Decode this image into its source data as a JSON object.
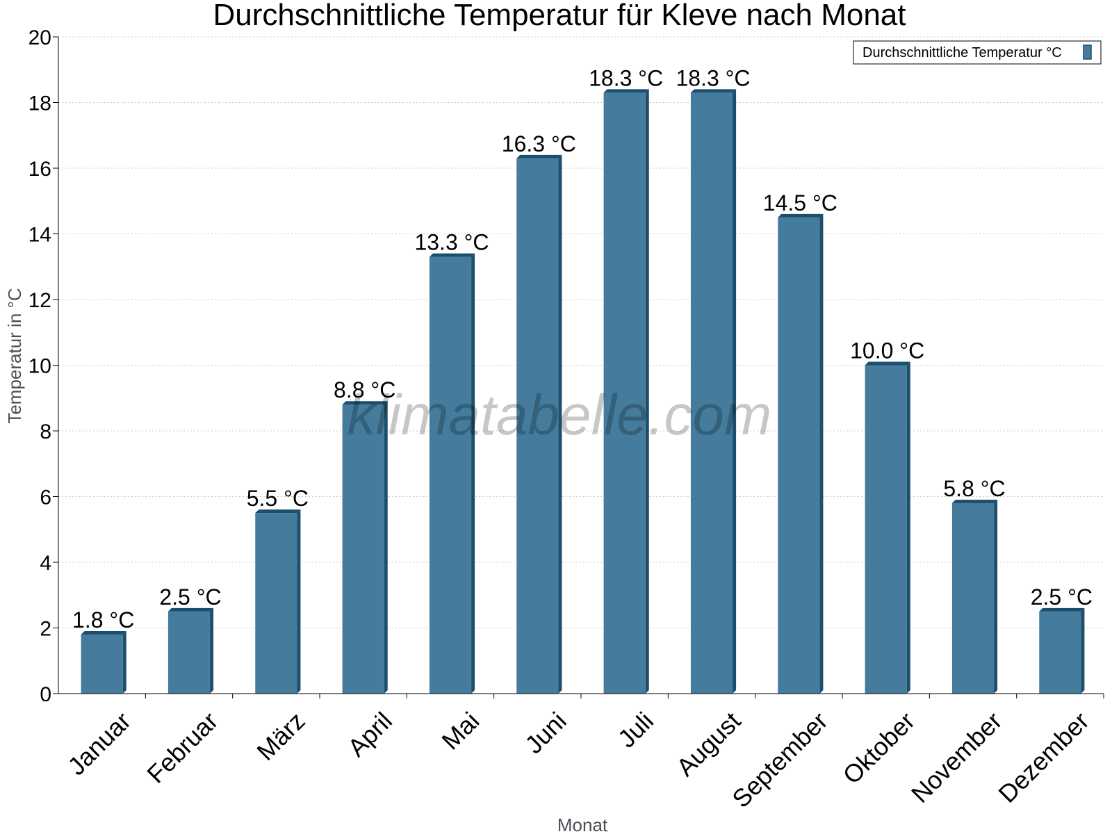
{
  "chart_data": {
    "type": "bar",
    "title": "Durchschnittliche Temperatur für Kleve nach Monat",
    "xlabel": "Monat",
    "ylabel": "Temperatur in °C",
    "categories": [
      "Januar",
      "Februar",
      "März",
      "April",
      "Mai",
      "Juni",
      "Juli",
      "August",
      "September",
      "Oktober",
      "November",
      "Dezember"
    ],
    "series": [
      {
        "name": "Durchschnittliche Temperatur °C",
        "values": [
          1.8,
          2.5,
          5.5,
          8.8,
          13.3,
          16.3,
          18.3,
          18.3,
          14.5,
          10.0,
          5.8,
          2.5
        ],
        "labels": [
          "1.8 °C",
          "2.5 °C",
          "5.5 °C",
          "8.8 °C",
          "13.3 °C",
          "16.3 °C",
          "18.3 °C",
          "18.3 °C",
          "14.5 °C",
          "10.0 °C",
          "5.8 °C",
          "2.5 °C"
        ]
      }
    ],
    "ylim": [
      0,
      20
    ],
    "yticks": [
      0,
      2,
      4,
      6,
      8,
      10,
      12,
      14,
      16,
      18,
      20
    ],
    "grid": true,
    "legend_position": "top-right",
    "colors": {
      "bar": "#457b9d",
      "bar_side": "#1d4e6e",
      "grid": "#c8c8c8"
    }
  },
  "watermark": "klimatabelle.com"
}
